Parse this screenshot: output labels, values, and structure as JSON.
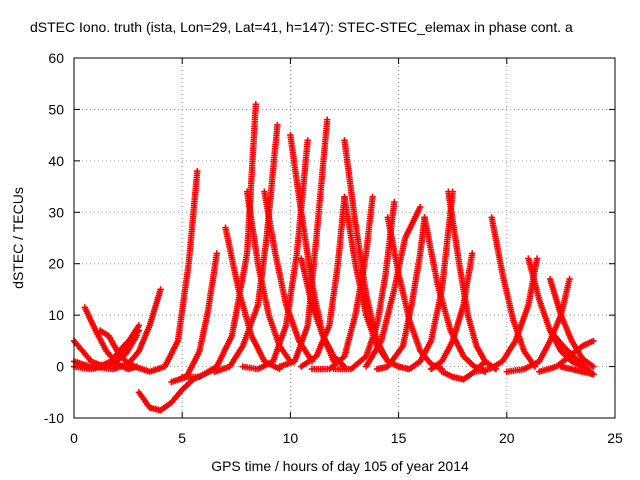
{
  "chart_data": {
    "type": "scatter",
    "title": "dSTEC Iono. truth (ista, Lon=29, Lat=41, h=147): STEC-STEC_elemax in phase cont. a",
    "xlabel": "GPS time / hours of day 105 of year 2014",
    "ylabel": "dSTEC  / TECUs",
    "xlim": [
      0,
      25
    ],
    "ylim": [
      -10,
      60
    ],
    "xticks": [
      0,
      5,
      10,
      15,
      20,
      25
    ],
    "yticks": [
      -10,
      0,
      10,
      20,
      30,
      40,
      50,
      60
    ],
    "grid": true,
    "marker": "plus",
    "color": "#ff0000",
    "arcs": [
      {
        "x": [
          0.0,
          0.4,
          0.8,
          1.2,
          1.5
        ],
        "y": [
          5,
          3,
          1,
          0.3,
          0
        ]
      },
      {
        "x": [
          0.0,
          0.8,
          1.6,
          2.3,
          3.0
        ],
        "y": [
          0,
          -0.5,
          0.5,
          3.5,
          8
        ]
      },
      {
        "x": [
          0.0,
          0.6,
          1.2,
          1.8,
          2.4,
          2.9
        ],
        "y": [
          1,
          0.2,
          -0.2,
          0.5,
          2.5,
          6
        ]
      },
      {
        "x": [
          0.5,
          1.0,
          1.5,
          2.0,
          2.5,
          2.9
        ],
        "y": [
          11.5,
          7,
          3,
          0.5,
          -0.5,
          0
        ]
      },
      {
        "x": [
          0.3,
          1.0,
          1.7,
          2.3,
          3.0
        ],
        "y": [
          0,
          -0.3,
          1,
          4,
          7
        ]
      },
      {
        "x": [
          1.2,
          1.6,
          2.0,
          2.4,
          2.8
        ],
        "y": [
          7,
          6,
          3,
          1,
          0
        ]
      },
      {
        "x": [
          1.0,
          1.8,
          2.5,
          3.0,
          3.5,
          4.0
        ],
        "y": [
          0,
          -0.5,
          0.5,
          3,
          8,
          15
        ]
      },
      {
        "x": [
          3.0,
          3.5,
          4.0,
          4.5,
          5.0,
          5.5,
          6.5
        ],
        "y": [
          -5,
          -8,
          -8.5,
          -7,
          -4.5,
          -2.5,
          -0.5
        ]
      },
      {
        "x": [
          2.8,
          3.5,
          4.2,
          4.8,
          5.3,
          5.7
        ],
        "y": [
          0,
          -1,
          0,
          5,
          20,
          38
        ]
      },
      {
        "x": [
          4.5,
          5.2,
          5.8,
          6.2,
          6.6
        ],
        "y": [
          -3,
          -2,
          3,
          11,
          22
        ]
      },
      {
        "x": [
          5.0,
          5.8,
          6.6,
          7.3,
          8.0,
          8.4
        ],
        "y": [
          -2,
          -2,
          0,
          6,
          22,
          51
        ]
      },
      {
        "x": [
          7.0,
          7.6,
          8.2,
          8.8,
          9.5
        ],
        "y": [
          27,
          15,
          6,
          1,
          -0.5
        ]
      },
      {
        "x": [
          6.5,
          7.2,
          7.8,
          8.5,
          8.9,
          9.4
        ],
        "y": [
          -1,
          0,
          4,
          12,
          25,
          47
        ]
      },
      {
        "x": [
          8.0,
          8.5,
          9.0,
          9.5,
          10.0
        ],
        "y": [
          34,
          20,
          10,
          4,
          1
        ]
      },
      {
        "x": [
          8.8,
          9.3,
          9.8,
          10.4,
          11.0
        ],
        "y": [
          34,
          22,
          12,
          5,
          1
        ]
      },
      {
        "x": [
          7.8,
          8.5,
          9.2,
          9.8,
          10.3,
          10.8
        ],
        "y": [
          0,
          -0.5,
          1,
          8,
          22,
          44
        ]
      },
      {
        "x": [
          10.0,
          10.5,
          11.0,
          11.5,
          12.0
        ],
        "y": [
          45,
          30,
          16,
          6,
          1
        ]
      },
      {
        "x": [
          9.5,
          10.2,
          10.8,
          11.2,
          11.7
        ],
        "y": [
          0,
          1,
          8,
          25,
          48
        ]
      },
      {
        "x": [
          10.5,
          11.0,
          11.5,
          12.0,
          12.5
        ],
        "y": [
          21,
          12,
          6,
          2,
          0
        ]
      },
      {
        "x": [
          10.5,
          11.2,
          11.8,
          12.2,
          12.5
        ],
        "y": [
          0,
          2,
          8,
          20,
          33
        ]
      },
      {
        "x": [
          12.5,
          13.0,
          13.5,
          14.0,
          14.5
        ],
        "y": [
          44,
          28,
          14,
          5,
          1
        ]
      },
      {
        "x": [
          11.0,
          11.8,
          12.5,
          13.0,
          13.5,
          13.8
        ],
        "y": [
          -0.5,
          -0.5,
          2,
          10,
          22,
          33
        ]
      },
      {
        "x": [
          12.5,
          13.0,
          13.5,
          14.0,
          14.5,
          15.0
        ],
        "y": [
          33,
          20,
          10,
          4,
          1,
          0
        ]
      },
      {
        "x": [
          12.0,
          12.8,
          13.5,
          14.0,
          14.4,
          14.8
        ],
        "y": [
          -0.5,
          -0.5,
          2,
          8,
          18,
          32
        ]
      },
      {
        "x": [
          13.5,
          14.2,
          14.8,
          15.3,
          16.0
        ],
        "y": [
          0,
          5,
          15,
          25,
          31
        ]
      },
      {
        "x": [
          14.5,
          15.0,
          15.5,
          16.0,
          16.5,
          17.0
        ],
        "y": [
          29,
          18,
          9,
          3,
          0.5,
          -0.5
        ]
      },
      {
        "x": [
          14.0,
          14.5,
          15.2,
          15.6,
          16.0,
          16.2
        ],
        "y": [
          -0.5,
          0,
          4,
          12,
          22,
          29
        ]
      },
      {
        "x": [
          15.0,
          15.5,
          16.0,
          16.5,
          17.0,
          17.5
        ],
        "y": [
          0,
          -0.5,
          1,
          5,
          15,
          34
        ]
      },
      {
        "x": [
          16.2,
          16.8,
          17.4,
          18.0,
          18.5,
          19.0
        ],
        "y": [
          29,
          16,
          7,
          2,
          0,
          -1
        ]
      },
      {
        "x": [
          17.3,
          17.8,
          18.2,
          18.6,
          19.0,
          19.5
        ],
        "y": [
          34,
          20,
          10,
          4,
          1,
          -0.5
        ]
      },
      {
        "x": [
          16.5,
          17.0,
          17.5,
          18.0,
          18.4
        ],
        "y": [
          -0.5,
          1,
          5,
          12,
          22
        ]
      },
      {
        "x": [
          17.0,
          17.5,
          18.0,
          18.5,
          19.0
        ],
        "y": [
          -1,
          -2,
          -2.5,
          -1,
          1
        ]
      },
      {
        "x": [
          19.3,
          19.8,
          20.3,
          20.8,
          21.3
        ],
        "y": [
          29,
          18,
          9,
          3,
          0
        ]
      },
      {
        "x": [
          18.5,
          19.2,
          19.8,
          20.4,
          21.0,
          21.4
        ],
        "y": [
          -1,
          -0.5,
          1,
          5,
          12,
          21
        ]
      },
      {
        "x": [
          21.0,
          21.5,
          22.0,
          22.5,
          23.0,
          23.5
        ],
        "y": [
          21,
          13,
          7,
          3,
          1,
          0
        ]
      },
      {
        "x": [
          20.0,
          20.8,
          21.5,
          22.0,
          22.5,
          22.9
        ],
        "y": [
          -1,
          -0.5,
          1,
          5,
          10,
          17
        ]
      },
      {
        "x": [
          22.0,
          22.5,
          23.0,
          23.5,
          24.0
        ],
        "y": [
          17,
          10,
          5,
          1.5,
          0
        ]
      },
      {
        "x": [
          21.5,
          22.3,
          22.9,
          23.5,
          24.0
        ],
        "y": [
          -1,
          0,
          2,
          4,
          5
        ]
      },
      {
        "x": [
          22.0,
          22.6,
          23.2,
          23.6,
          24.0
        ],
        "y": [
          7,
          4,
          1.5,
          0,
          -1.5
        ]
      },
      {
        "x": [
          22.5,
          23.0,
          23.5,
          24.0
        ],
        "y": [
          0,
          -0.5,
          -1,
          -1.5
        ]
      }
    ]
  }
}
